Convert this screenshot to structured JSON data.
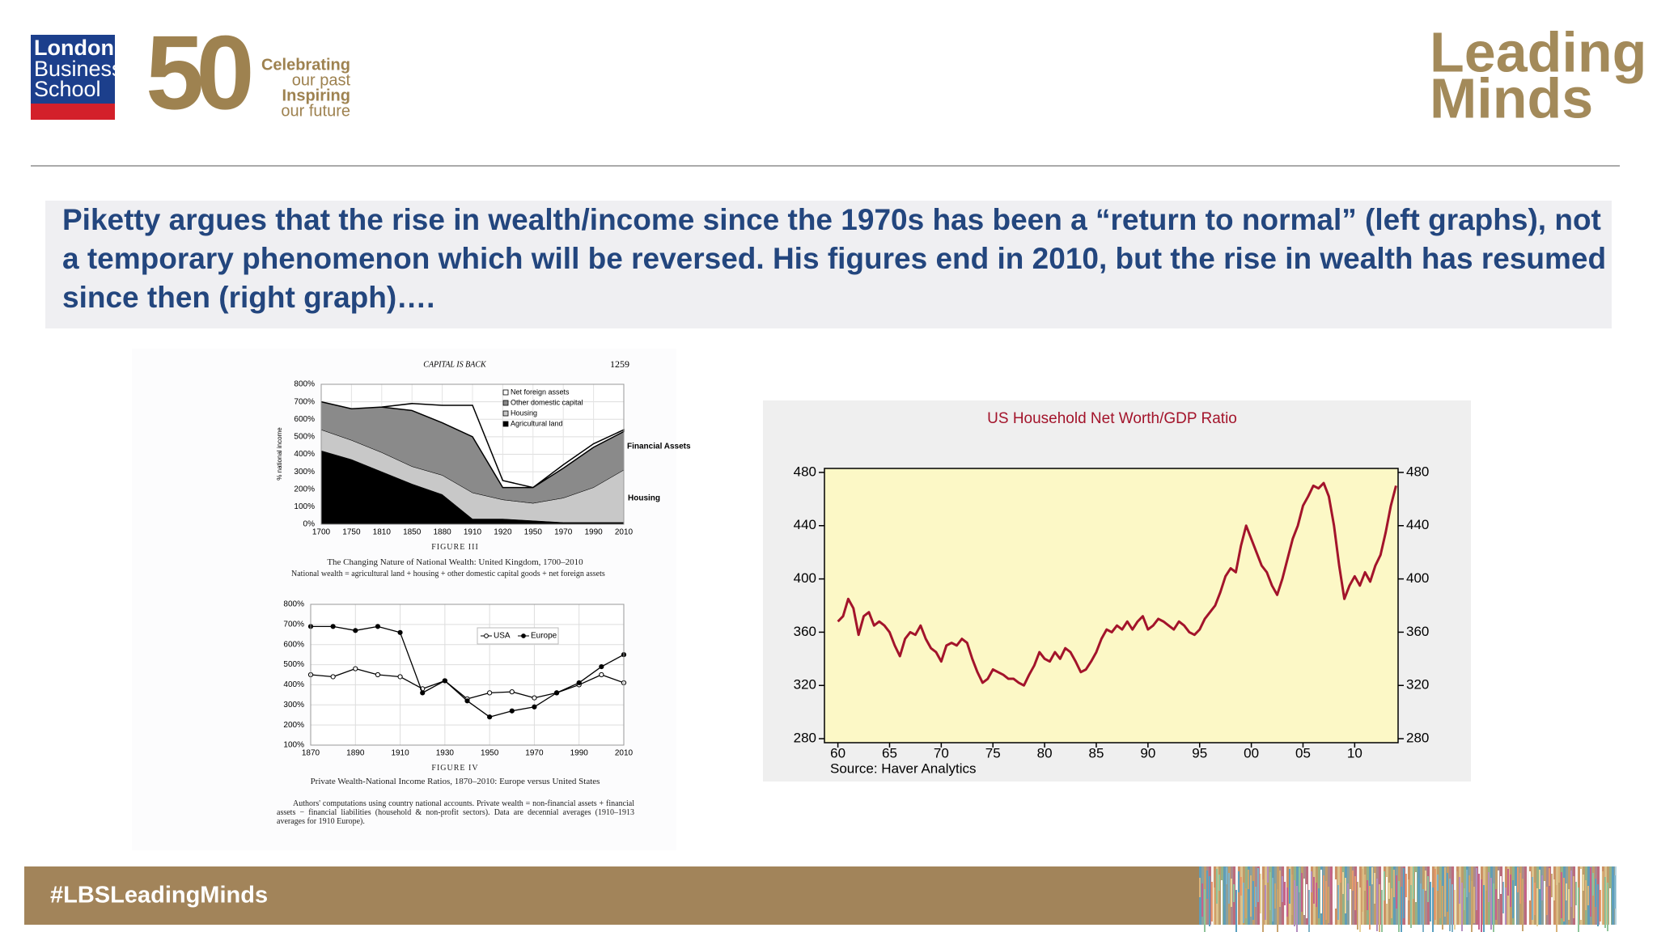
{
  "header": {
    "logo_lines": [
      "London",
      "Business",
      "School"
    ],
    "anniversary": "50",
    "tagline": [
      "Celebrating",
      "our past",
      "Inspiring",
      "our future"
    ],
    "brand": [
      "Leading",
      "Minds"
    ]
  },
  "title": "Piketty argues that the rise in wealth/income since the 1970s has been a “return to normal” (left graphs), not a temporary phenomenon which will be reversed. His figures end in 2010, but the rise in wealth has resumed since then (right graph)….",
  "chart_data": [
    {
      "type": "area",
      "stacked": true,
      "running_head": "CAPITAL IS BACK",
      "page_number": "1259",
      "y_label": "% national income",
      "categories": [
        "1700",
        "1750",
        "1810",
        "1850",
        "1880",
        "1910",
        "1920",
        "1950",
        "1970",
        "1990",
        "2010"
      ],
      "series": [
        {
          "name": "Agricultural land",
          "color": "#000000",
          "values": [
            420,
            370,
            300,
            230,
            170,
            30,
            30,
            20,
            10,
            10,
            10
          ]
        },
        {
          "name": "Housing",
          "color": "#c8c8c8",
          "values": [
            120,
            110,
            110,
            100,
            110,
            150,
            110,
            100,
            140,
            200,
            300
          ]
        },
        {
          "name": "Other domestic capital",
          "color": "#8a8a8a",
          "values": [
            160,
            180,
            260,
            320,
            300,
            320,
            70,
            90,
            170,
            230,
            220
          ]
        },
        {
          "name": "Net foreign assets",
          "color": "#ffffff",
          "values": [
            0,
            0,
            0,
            40,
            100,
            180,
            40,
            0,
            20,
            20,
            10
          ]
        }
      ],
      "ylim": [
        0,
        800
      ],
      "yticks": [
        {
          "value": 0,
          "label": "0%"
        },
        {
          "value": 100,
          "label": "100%"
        },
        {
          "value": 200,
          "label": "200%"
        },
        {
          "value": 300,
          "label": "300%"
        },
        {
          "value": 400,
          "label": "400%"
        },
        {
          "value": 500,
          "label": "500%"
        },
        {
          "value": 600,
          "label": "600%"
        },
        {
          "value": 700,
          "label": "700%"
        },
        {
          "value": 800,
          "label": "800%"
        }
      ],
      "grid": true,
      "annotations": [
        "Financial Assets",
        "Housing"
      ],
      "figure_label": "FIGURE III",
      "caption": "The Changing Nature of National Wealth: United Kingdom, 1700–2010",
      "note": "National wealth = agricultural land + housing + other domestic capital goods + net foreign assets"
    },
    {
      "type": "line",
      "x": [
        1870,
        1880,
        1890,
        1900,
        1910,
        1920,
        1930,
        1940,
        1950,
        1960,
        1970,
        1980,
        1990,
        2000,
        2010
      ],
      "series": [
        {
          "name": "USA",
          "color": "#000000",
          "marker": "open",
          "values": [
            450,
            440,
            480,
            450,
            440,
            380,
            420,
            330,
            360,
            365,
            335,
            360,
            400,
            450,
            410
          ]
        },
        {
          "name": "Europe",
          "color": "#000000",
          "marker": "filled",
          "values": [
            690,
            690,
            670,
            690,
            660,
            360,
            420,
            320,
            240,
            270,
            290,
            360,
            410,
            490,
            550
          ]
        }
      ],
      "xlim": [
        1870,
        2010
      ],
      "xticks": [
        1870,
        1890,
        1910,
        1930,
        1950,
        1970,
        1990,
        2010
      ],
      "ylim": [
        100,
        800
      ],
      "yticks": [
        {
          "value": 100,
          "label": "100%"
        },
        {
          "value": 200,
          "label": "200%"
        },
        {
          "value": 300,
          "label": "300%"
        },
        {
          "value": 400,
          "label": "400%"
        },
        {
          "value": 500,
          "label": "500%"
        },
        {
          "value": 600,
          "label": "600%"
        },
        {
          "value": 700,
          "label": "700%"
        },
        {
          "value": 800,
          "label": "800%"
        }
      ],
      "grid": true,
      "figure_label": "FIGURE IV",
      "caption": "Private Wealth-National Income Ratios, 1870–2010: Europe versus United States",
      "note": "Authors' computations using country national accounts. Private wealth = non-financial assets + financial assets − financial liabilities (household & non-profit sectors). Data are decennial averages (1910–1913 averages for 1910 Europe)."
    },
    {
      "type": "line",
      "title": "US Household Net Worth/GDP Ratio",
      "source": "Source: Haver Analytics",
      "plot_background": "#fcf8c6",
      "x": [
        1960,
        1960.5,
        1961,
        1961.5,
        1962,
        1962.5,
        1963,
        1963.5,
        1964,
        1964.5,
        1965,
        1965.5,
        1966,
        1966.5,
        1967,
        1967.5,
        1968,
        1968.5,
        1969,
        1969.5,
        1970,
        1970.5,
        1971,
        1971.5,
        1972,
        1972.5,
        1973,
        1973.5,
        1974,
        1974.5,
        1975,
        1975.5,
        1976,
        1976.5,
        1977,
        1977.5,
        1978,
        1978.5,
        1979,
        1979.5,
        1980,
        1980.5,
        1981,
        1981.5,
        1982,
        1982.5,
        1983,
        1983.5,
        1984,
        1984.5,
        1985,
        1985.5,
        1986,
        1986.5,
        1987,
        1987.5,
        1988,
        1988.5,
        1989,
        1989.5,
        1990,
        1990.5,
        1991,
        1991.5,
        1992,
        1992.5,
        1993,
        1993.5,
        1994,
        1994.5,
        1995,
        1995.5,
        1996,
        1996.5,
        1997,
        1997.5,
        1998,
        1998.5,
        1999,
        1999.5,
        2000,
        2000.5,
        2001,
        2001.5,
        2002,
        2002.5,
        2003,
        2003.5,
        2004,
        2004.5,
        2005,
        2005.5,
        2006,
        2006.5,
        2007,
        2007.5,
        2008,
        2008.5,
        2009,
        2009.5,
        2010,
        2010.5,
        2011,
        2011.5,
        2012,
        2012.5,
        2013,
        2013.5,
        2014
      ],
      "series": [
        {
          "name": "Net Worth/GDP",
          "color": "#a3142b",
          "values": [
            368,
            372,
            385,
            378,
            358,
            372,
            375,
            365,
            368,
            365,
            360,
            350,
            342,
            355,
            360,
            358,
            365,
            355,
            348,
            345,
            338,
            350,
            352,
            350,
            355,
            352,
            340,
            330,
            322,
            325,
            332,
            330,
            328,
            325,
            325,
            322,
            320,
            328,
            335,
            345,
            340,
            338,
            345,
            340,
            348,
            345,
            338,
            330,
            332,
            338,
            345,
            355,
            362,
            360,
            365,
            362,
            368,
            362,
            368,
            372,
            362,
            365,
            370,
            368,
            365,
            362,
            368,
            365,
            360,
            358,
            362,
            370,
            375,
            380,
            390,
            402,
            408,
            405,
            425,
            440,
            430,
            420,
            410,
            405,
            395,
            388,
            400,
            415,
            430,
            440,
            455,
            462,
            470,
            468,
            472,
            462,
            440,
            410,
            385,
            395,
            402,
            395,
            405,
            398,
            410,
            418,
            435,
            455,
            470
          ]
        }
      ],
      "xlim": [
        1958.7,
        2014.2
      ],
      "xticks": [
        {
          "value": 1960,
          "label": "60"
        },
        {
          "value": 1965,
          "label": "65"
        },
        {
          "value": 1970,
          "label": "70"
        },
        {
          "value": 1975,
          "label": "75"
        },
        {
          "value": 1980,
          "label": "80"
        },
        {
          "value": 1985,
          "label": "85"
        },
        {
          "value": 1990,
          "label": "90"
        },
        {
          "value": 1995,
          "label": "95"
        },
        {
          "value": 2000,
          "label": "00"
        },
        {
          "value": 2005,
          "label": "05"
        },
        {
          "value": 2010,
          "label": "10"
        }
      ],
      "ylim": [
        277,
        483
      ],
      "yticks": [
        280,
        320,
        360,
        400,
        440,
        480
      ],
      "right_axis_labels": true
    }
  ],
  "footer": {
    "hashtag": "#LBSLeadingMinds"
  }
}
